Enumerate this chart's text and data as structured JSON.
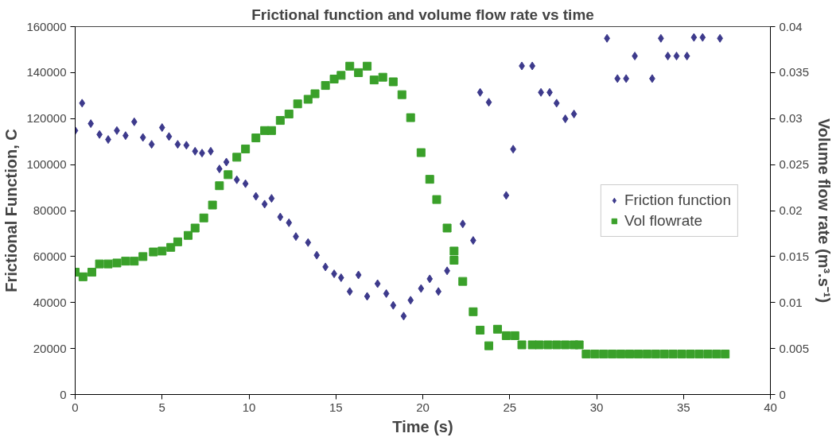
{
  "chart_data": {
    "type": "scatter",
    "title": "Frictional function and volume flow rate vs time",
    "xlabel": "Time (s)",
    "ylabel": "Frictional Function, C",
    "y2label": "Volume flow rate (m³.s⁻¹)",
    "xlim": [
      0,
      40
    ],
    "xticks": [
      0,
      5,
      10,
      15,
      20,
      25,
      30,
      35,
      40
    ],
    "ylim": [
      0,
      160000
    ],
    "yticks": [
      0,
      20000,
      40000,
      60000,
      80000,
      100000,
      120000,
      140000,
      160000
    ],
    "y2lim": [
      0,
      0.04
    ],
    "y2ticks": [
      0,
      0.005,
      0.01,
      0.015,
      0.02,
      0.025,
      0.03,
      0.035,
      0.04
    ],
    "grid": false,
    "legend": "center right",
    "series": [
      {
        "name": "Friction function",
        "color": "#3d3a8c",
        "marker": "diamond",
        "x": [
          0,
          0.4,
          0.9,
          1.4,
          1.9,
          2.4,
          2.9,
          3.4,
          3.9,
          4.4,
          5.0,
          5.4,
          5.9,
          6.4,
          6.9,
          7.3,
          7.8,
          8.3,
          8.7,
          9.3,
          9.8,
          10.4,
          10.9,
          11.3,
          11.8,
          12.3,
          12.7,
          13.4,
          13.9,
          14.4,
          14.9,
          15.3,
          15.8,
          16.3,
          16.8,
          17.4,
          17.9,
          18.3,
          18.9,
          19.3,
          19.9,
          20.4,
          20.9,
          21.4,
          22.3,
          22.9,
          23.3,
          23.8,
          24.8,
          25.2,
          25.7,
          26.3,
          26.8,
          27.3,
          27.7,
          28.2,
          28.7,
          30.6,
          31.2,
          31.7,
          32.2,
          33.2,
          33.7,
          34.1,
          34.6,
          35.2,
          35.6,
          36.1,
          37.1
        ],
        "values": [
          114800,
          126700,
          117800,
          113100,
          110900,
          114800,
          112600,
          118600,
          111800,
          108800,
          116100,
          112200,
          108800,
          108400,
          105800,
          105000,
          105800,
          98100,
          101100,
          93400,
          91700,
          86200,
          82800,
          85300,
          77200,
          74700,
          68700,
          66100,
          60600,
          55500,
          52500,
          50800,
          44800,
          52000,
          42700,
          48200,
          43900,
          38800,
          34100,
          41000,
          46100,
          50300,
          44800,
          53800,
          74200,
          67000,
          131400,
          127100,
          86600,
          106700,
          142900,
          142900,
          131400,
          131400,
          126700,
          119900,
          122000,
          154900,
          137400,
          137400,
          147200,
          137400,
          154900,
          147200,
          147200,
          147200,
          155300,
          155300,
          154900
        ]
      },
      {
        "name": "Vol flowrate",
        "color": "#3aa02a",
        "marker": "square",
        "axis": "y2",
        "x": [
          0,
          0.45,
          0.96,
          1.4,
          1.9,
          2.4,
          2.9,
          3.4,
          3.9,
          4.5,
          5.0,
          5.5,
          5.9,
          6.5,
          6.9,
          7.4,
          7.9,
          8.3,
          8.8,
          9.3,
          9.8,
          10.4,
          10.9,
          11.3,
          11.8,
          12.3,
          12.8,
          13.4,
          13.8,
          14.4,
          14.9,
          15.3,
          15.8,
          16.3,
          16.8,
          17.2,
          17.7,
          18.3,
          18.8,
          19.3,
          19.9,
          20.4,
          20.8,
          21.4,
          21.8,
          21.8,
          22.3,
          22.9,
          23.3,
          23.8,
          24.3,
          24.8,
          25.3,
          25.7,
          26.3,
          26.7,
          27.2,
          27.7,
          28.2,
          28.7,
          29.0,
          29.4,
          29.9,
          30.4,
          30.9,
          31.4,
          31.9,
          32.4,
          32.9,
          33.4,
          33.9,
          34.4,
          34.9,
          35.4,
          35.9,
          36.4,
          36.9,
          37.4
        ],
        "values": [
          0.0133,
          0.0128,
          0.0133,
          0.0142,
          0.0142,
          0.0143,
          0.0145,
          0.0145,
          0.015,
          0.0155,
          0.0156,
          0.016,
          0.0166,
          0.0173,
          0.0181,
          0.0192,
          0.0206,
          0.0227,
          0.0239,
          0.0258,
          0.0267,
          0.0279,
          0.0287,
          0.0287,
          0.0298,
          0.0305,
          0.0316,
          0.0321,
          0.0327,
          0.0336,
          0.0343,
          0.0347,
          0.0357,
          0.035,
          0.0357,
          0.0342,
          0.0345,
          0.034,
          0.0326,
          0.0301,
          0.0263,
          0.0234,
          0.0212,
          0.0181,
          0.0156,
          0.0146,
          0.0123,
          0.009,
          0.007,
          0.0053,
          0.0071,
          0.0064,
          0.0064,
          0.0054,
          0.0054,
          0.0054,
          0.0054,
          0.0054,
          0.0054,
          0.0054,
          0.0054,
          0.0044,
          0.0044,
          0.0044,
          0.0044,
          0.0044,
          0.0044,
          0.0044,
          0.0044,
          0.0044,
          0.0044,
          0.0044,
          0.0044,
          0.0044,
          0.0044,
          0.0044,
          0.0044,
          0.0044
        ]
      }
    ]
  }
}
